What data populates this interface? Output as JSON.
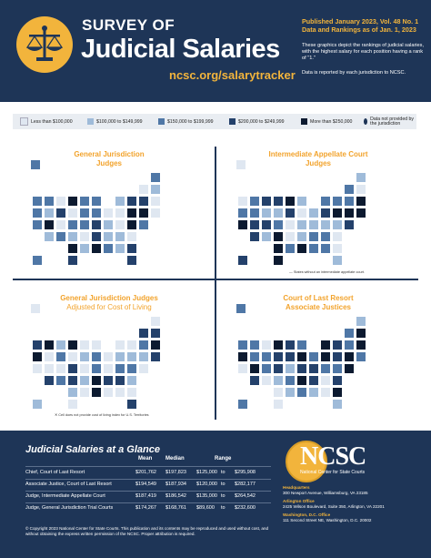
{
  "header": {
    "survey_of": "SURVEY OF",
    "title": "Judicial Salaries",
    "url": "ncsc.org/salarytracker",
    "published": "Published January 2023, Vol. 48 No. 1 Data and Rankings as of Jan. 1, 2023",
    "description": "These graphics depict the rankings of judicial salaries, with the highest salary for each position having a rank of \"1.\"",
    "description2": "Data is reported by each jurisdiction to NCSC."
  },
  "legend": {
    "items": [
      {
        "label": "Less than $100,000",
        "color": "#dfe7f1"
      },
      {
        "label": "$100,000 to $149,999",
        "color": "#9fbbd9"
      },
      {
        "label": "$150,000 to $199,999",
        "color": "#4f77a6"
      },
      {
        "label": "$200,000 to $249,999",
        "color": "#24416b"
      },
      {
        "label": "More than $250,000",
        "color": "#0c1a30"
      },
      {
        "label": "Data not provided by the jurisdiction",
        "color": "#1e3557"
      }
    ]
  },
  "maps": [
    {
      "title": "General Jurisdiction",
      "subtitle": "Judges"
    },
    {
      "title": "Intermediate Appellate Court",
      "subtitle": "Judges"
    },
    {
      "title": "General Jurisdiction Judges",
      "subtitle": "Adjusted for Cost of Living"
    },
    {
      "title": "Court of Last Resort",
      "subtitle": "Associate Justices"
    }
  ],
  "notes": {
    "iac": "States without an intermediate appellate court.",
    "col": "Cell does not provide cost of living index for U.S. Territories"
  },
  "glance": {
    "title": "Judicial Salaries at a Glance",
    "headers": {
      "mean": "Mean",
      "median": "Median",
      "range": "Range"
    },
    "rows": [
      {
        "label": "Chief, Court of Last Resort",
        "mean": "$201,762",
        "median": "$197,823",
        "low": "$125,000",
        "to": "to",
        "high": "$295,908"
      },
      {
        "label": "Associate Justice, Court of Last Resort",
        "mean": "$194,549",
        "median": "$187,934",
        "low": "$120,000",
        "to": "to",
        "high": "$282,177"
      },
      {
        "label": "Judge, Intermediate Appellate Court",
        "mean": "$187,419",
        "median": "$186,542",
        "low": "$135,000",
        "to": "to",
        "high": "$264,542"
      },
      {
        "label": "Judge, General Jurisdiction Trial Courts",
        "mean": "$174,267",
        "median": "$168,761",
        "low": "$89,600",
        "to": "to",
        "high": "$232,600"
      }
    ],
    "copyright": "© Copyright 2023 National Center for State Courts. This publication and its contents may be reproduced and used without cost, and without obtaining the express written permission of the NCSC. Proper attribution is required."
  },
  "org": {
    "name": "NCSC",
    "full": "National Center for State Courts",
    "offices": [
      {
        "head": "Headquarters",
        "addr": "300 Newport Avenue, Williamsburg, VA 23185"
      },
      {
        "head": "Arlington Office",
        "addr": "2425 Wilson Boulevard, Suite 350, Arlington, VA 22201"
      },
      {
        "head": "Washington, D.C. Office",
        "addr": "111 Second Street NE, Washington, D.C. 20002"
      }
    ]
  }
}
